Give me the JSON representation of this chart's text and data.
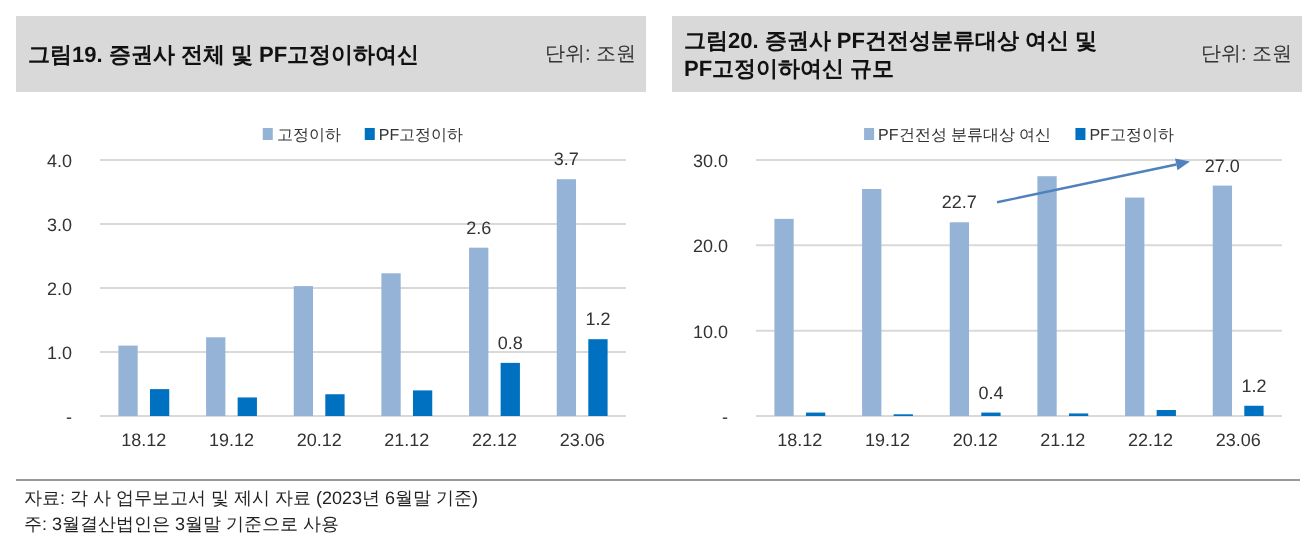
{
  "chart_data": [
    {
      "type": "bar",
      "title": "그림19. 증권사 전체 및 PF고정이하여신",
      "subtitle": "단위: 조원",
      "categories": [
        "18.12",
        "19.12",
        "20.12",
        "21.12",
        "22.12",
        "23.06"
      ],
      "series": [
        {
          "name": "고정이하",
          "color": "#95b3d7",
          "values": [
            1.1,
            1.23,
            2.03,
            2.23,
            2.63,
            3.7
          ],
          "value_labels": [
            null,
            null,
            null,
            null,
            "2.6",
            "3.7"
          ]
        },
        {
          "name": "PF고정이하",
          "color": "#0070c0",
          "values": [
            0.42,
            0.29,
            0.34,
            0.4,
            0.83,
            1.2
          ],
          "value_labels": [
            null,
            null,
            null,
            null,
            "0.8",
            "1.2"
          ]
        }
      ],
      "ylim": [
        0,
        4
      ],
      "yticks": [
        {
          "value": 0,
          "label": "-"
        },
        {
          "value": 1,
          "label": "1.0"
        },
        {
          "value": 2,
          "label": "2.0"
        },
        {
          "value": 3,
          "label": "3.0"
        },
        {
          "value": 4,
          "label": "4.0"
        }
      ],
      "grid": "y",
      "legend": "top",
      "annotations": [
        "자료: 각 사 업무보고서 및 제시 자료 (2023년 6월말 기준)",
        "주: 3월결산법인은 3월말 기준으로 사용"
      ]
    },
    {
      "type": "bar",
      "title": "그림20. 증권사 PF건전성분류대상 여신 및 PF고정이하여신 규모",
      "subtitle": "단위: 조원",
      "categories": [
        "18.12",
        "19.12",
        "20.12",
        "21.12",
        "22.12",
        "23.06"
      ],
      "series": [
        {
          "name": "PF건전성 분류대상 여신",
          "color": "#95b3d7",
          "values": [
            23.1,
            26.6,
            22.7,
            28.1,
            25.6,
            27.0
          ],
          "value_labels": [
            null,
            null,
            "22.7",
            null,
            null,
            "27.0"
          ]
        },
        {
          "name": "PF고정이하",
          "color": "#0070c0",
          "values": [
            0.4,
            0.2,
            0.4,
            0.3,
            0.7,
            1.2
          ],
          "value_labels": [
            null,
            null,
            "0.4",
            null,
            null,
            "1.2"
          ]
        }
      ],
      "ylim": [
        0,
        30
      ],
      "yticks": [
        {
          "value": 0,
          "label": "-"
        },
        {
          "value": 10,
          "label": "10.0"
        },
        {
          "value": 20,
          "label": "20.0"
        },
        {
          "value": 30,
          "label": "30.0"
        }
      ],
      "grid": "y",
      "legend": "top"
    }
  ]
}
